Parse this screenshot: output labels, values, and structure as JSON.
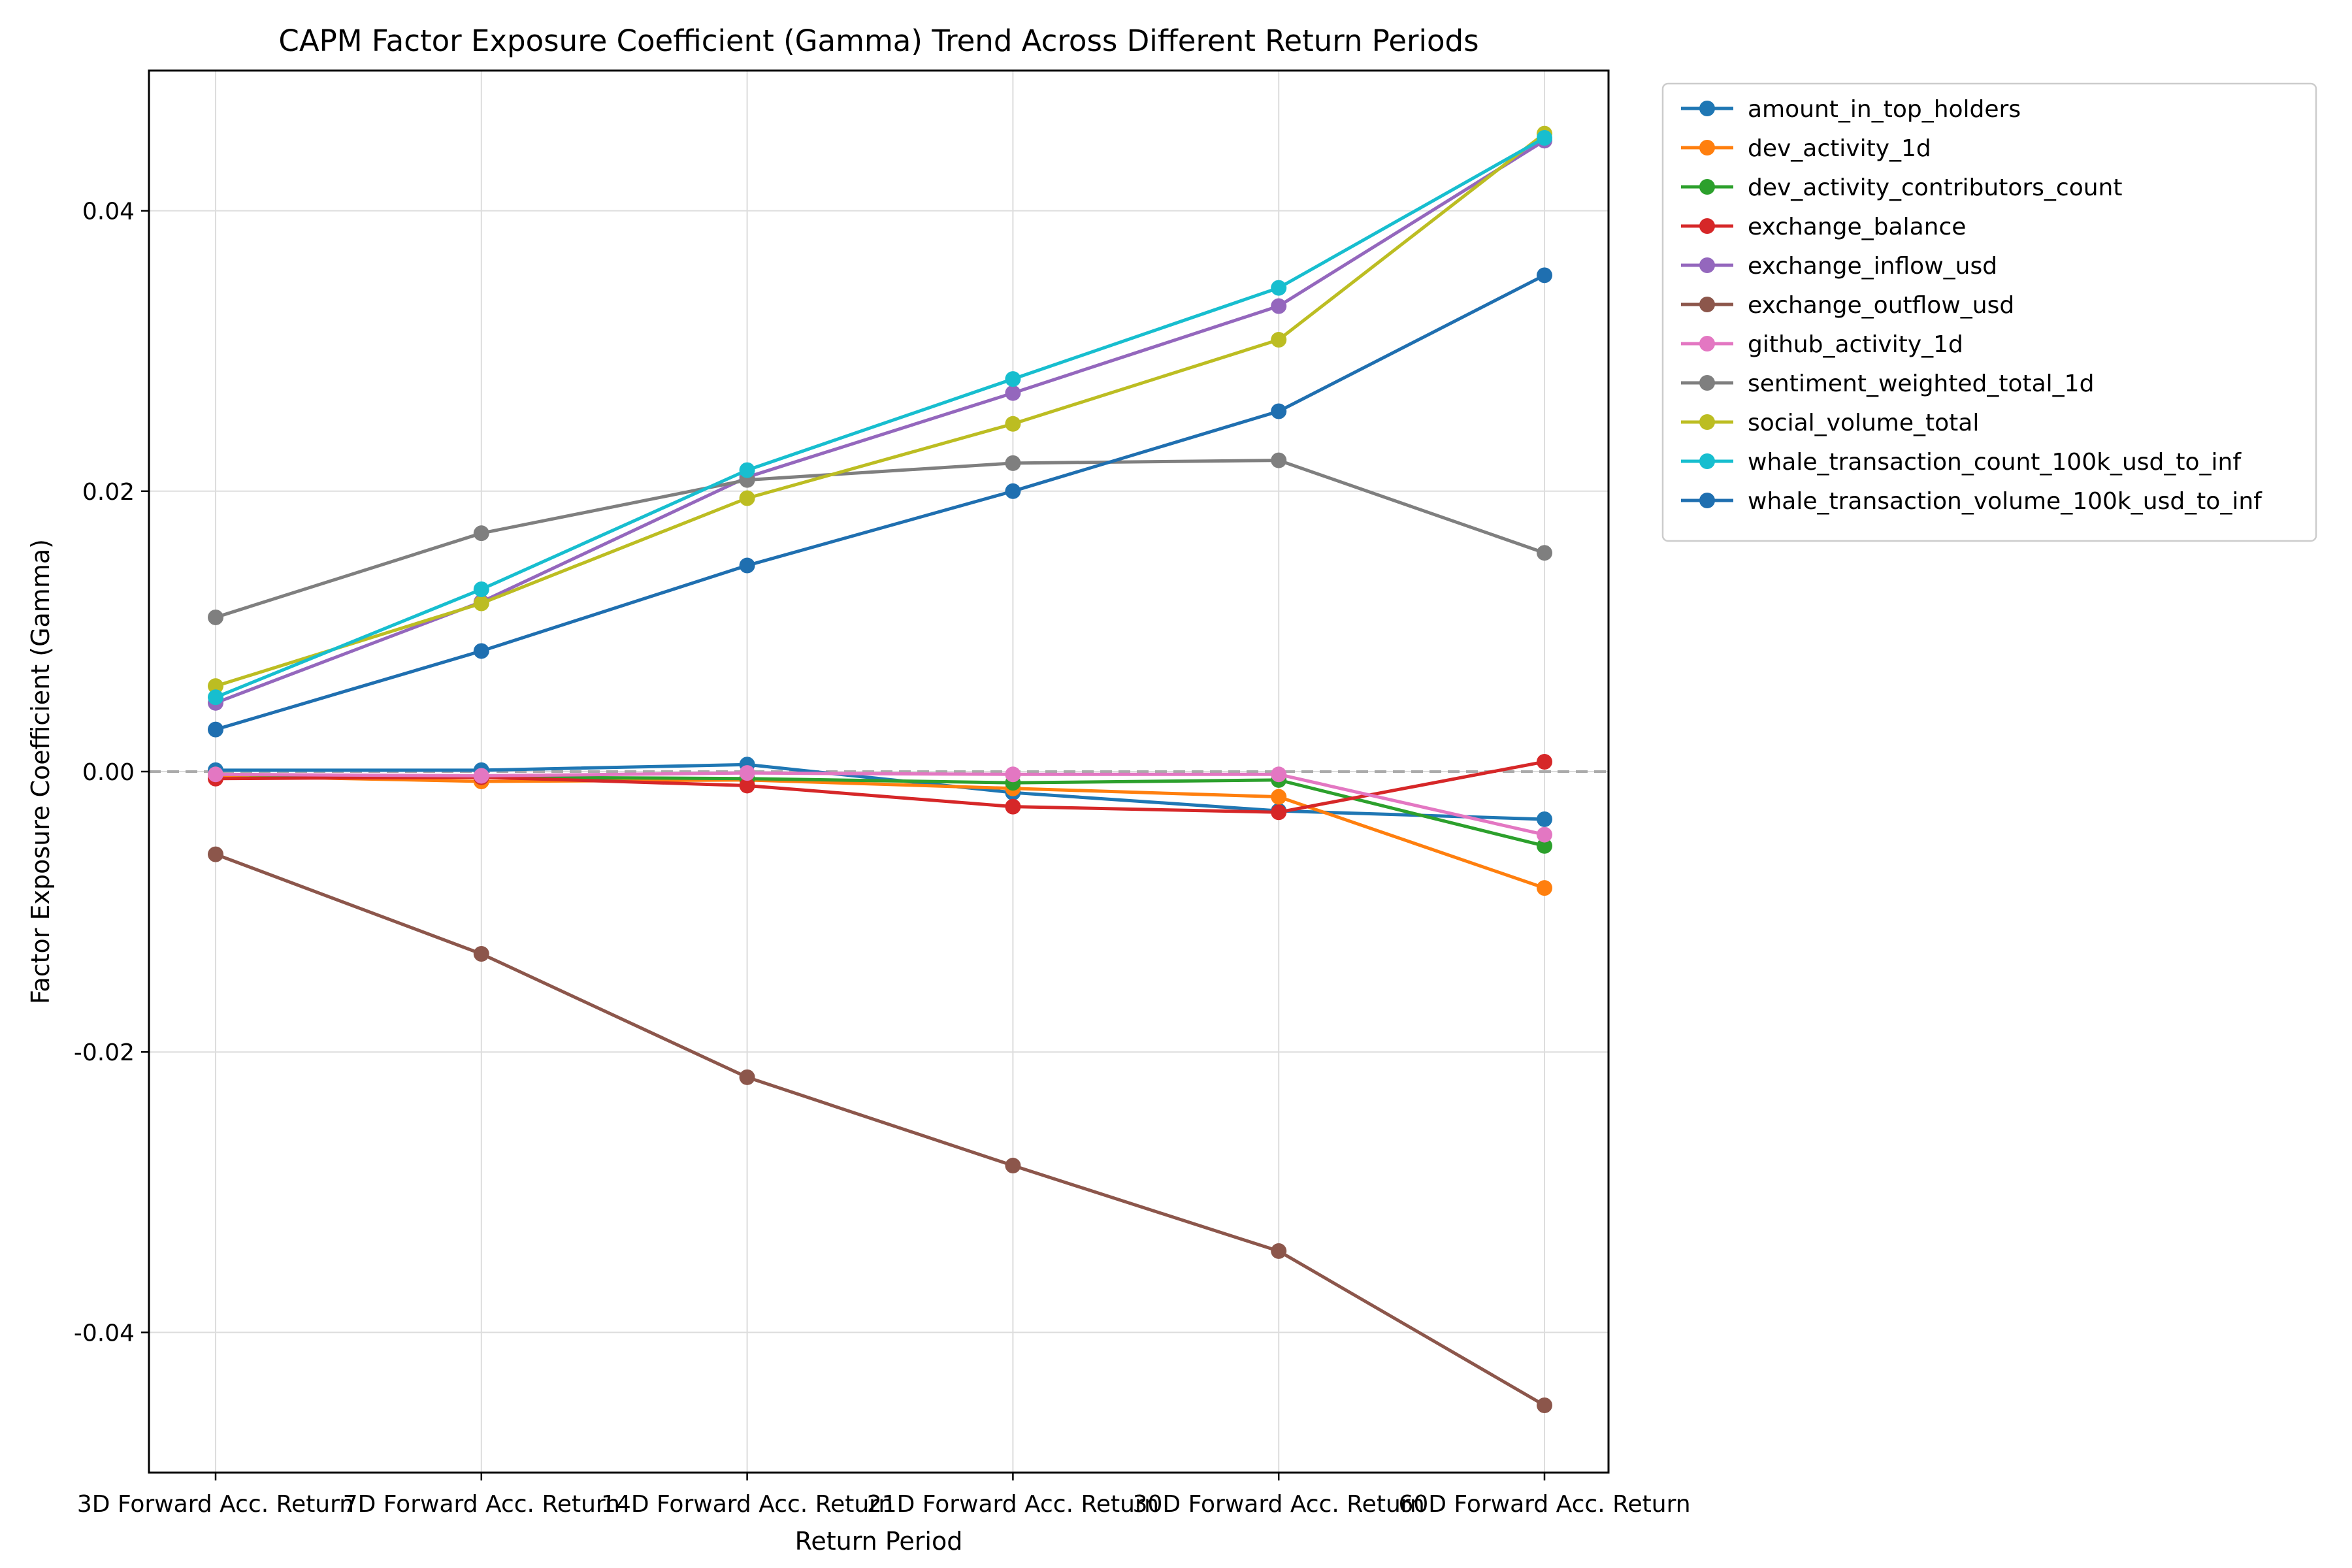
{
  "chart_data": {
    "type": "line",
    "title": "CAPM Factor Exposure Coefficient (Gamma) Trend Across Different Return Periods",
    "xlabel": "Return Period",
    "ylabel": "Factor Exposure Coefficient (Gamma)",
    "categories": [
      "3D Forward Acc. Return",
      "7D Forward Acc. Return",
      "14D Forward Acc. Return",
      "21D Forward Acc. Return",
      "30D Forward Acc. Return",
      "60D Forward Acc. Return"
    ],
    "ylim": [
      -0.05,
      0.05
    ],
    "yticks": [
      -0.04,
      -0.02,
      0.0,
      0.02,
      0.04
    ],
    "ytick_labels": [
      "-0.04",
      "-0.02",
      "0.00",
      "0.02",
      "0.04"
    ],
    "grid": true,
    "reference_line": {
      "y": 0,
      "style": "dashed",
      "color": "#aaaaaa"
    },
    "legend_position": "outside-top-right",
    "series": [
      {
        "name": "amount_in_top_holders",
        "color": "#1f77b4",
        "values": [
          0.0001,
          0.0001,
          0.0005,
          -0.0015,
          -0.0028,
          -0.0034
        ]
      },
      {
        "name": "dev_activity_1d",
        "color": "#ff7f0e",
        "values": [
          -0.0003,
          -0.0007,
          -0.0006,
          -0.0012,
          -0.0018,
          -0.0083
        ]
      },
      {
        "name": "dev_activity_contributors_count",
        "color": "#2ca02c",
        "values": [
          -0.0002,
          -0.0004,
          -0.0005,
          -0.0008,
          -0.0006,
          -0.0053
        ]
      },
      {
        "name": "exchange_balance",
        "color": "#d62728",
        "values": [
          -0.0005,
          -0.0004,
          -0.001,
          -0.0025,
          -0.0029,
          0.0007
        ]
      },
      {
        "name": "exchange_inflow_usd",
        "color": "#9467bd",
        "values": [
          0.0049,
          0.0121,
          0.021,
          0.027,
          0.0332,
          0.045
        ]
      },
      {
        "name": "exchange_outflow_usd",
        "color": "#8c564b",
        "values": [
          -0.0059,
          -0.013,
          -0.0218,
          -0.0281,
          -0.0342,
          -0.0452
        ]
      },
      {
        "name": "github_activity_1d",
        "color": "#e377c2",
        "values": [
          -0.0002,
          -0.0003,
          -0.0001,
          -0.0002,
          -0.0002,
          -0.0045
        ]
      },
      {
        "name": "sentiment_weighted_total_1d",
        "color": "#7f7f7f",
        "values": [
          0.011,
          0.017,
          0.0208,
          0.022,
          0.0222,
          0.0156
        ]
      },
      {
        "name": "social_volume_total",
        "color": "#bcbd22",
        "values": [
          0.0061,
          0.012,
          0.0195,
          0.0248,
          0.0308,
          0.0455
        ]
      },
      {
        "name": "whale_transaction_count_100k_usd_to_inf",
        "color": "#17becf",
        "values": [
          0.0053,
          0.013,
          0.0215,
          0.028,
          0.0345,
          0.0452
        ]
      },
      {
        "name": "whale_transaction_volume_100k_usd_to_inf",
        "color": "#1f6fb0",
        "values": [
          0.003,
          0.0086,
          0.0147,
          0.02,
          0.0257,
          0.0354
        ]
      }
    ]
  }
}
